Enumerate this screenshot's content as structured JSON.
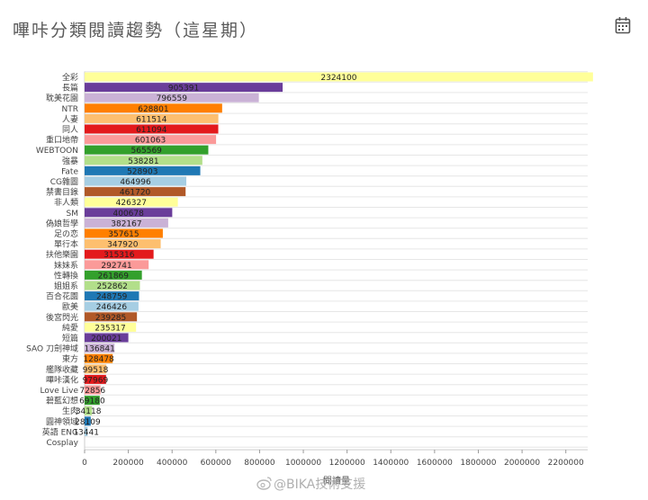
{
  "page": {
    "title": "嗶咔分類閱讀趨勢（這星期）",
    "calendar_icon": "calendar-icon",
    "watermark": "@BIKA技術支援",
    "watermark_icon": "weibo-icon"
  },
  "chart_data": {
    "type": "bar",
    "orientation": "horizontal",
    "title": "",
    "xlabel": "閱讀量",
    "ylabel": "",
    "xlim": [
      0,
      2300000
    ],
    "xticks": [
      0,
      200000,
      400000,
      600000,
      800000,
      1000000,
      1200000,
      1400000,
      1600000,
      1800000,
      2000000,
      2200000
    ],
    "grid": true,
    "categories": [
      "全彩",
      "長篇",
      "耽美花園",
      "NTR",
      "人妻",
      "同人",
      "重口地帶",
      "WEBTOON",
      "強暴",
      "Fate",
      "CG雜圖",
      "禁書目錄",
      "非人類",
      "SM",
      "偽娘哲學",
      "足の恋",
      "單行本",
      "扶他樂園",
      "妹妹系",
      "性轉換",
      "姐姐系",
      "百合花園",
      "歐美",
      "後宮閃光",
      "純愛",
      "短篇",
      "SAO 刀劍神域",
      "東方",
      "艦隊收藏",
      "嗶咔漢化",
      "Love Live",
      "碧藍幻想",
      "生肉",
      "圓神領域",
      "英語 ENG",
      "Cosplay"
    ],
    "values": [
      2324100,
      905391,
      796559,
      628801,
      611514,
      611094,
      601063,
      565569,
      538281,
      528903,
      464996,
      461720,
      426327,
      400678,
      382167,
      357615,
      347920,
      315316,
      292741,
      261869,
      252862,
      248759,
      246426,
      239285,
      235317,
      200021,
      136841,
      128478,
      99518,
      97969,
      72856,
      69180,
      34118,
      28109,
      13441,
      null
    ],
    "value_labels": [
      "2324100",
      "905391",
      "796559",
      "628801",
      "611514",
      "611094",
      "601063",
      "565569",
      "538281",
      "528903",
      "464996",
      "461720",
      "426327",
      "400678",
      "382167",
      "357615",
      "347920",
      "315316",
      "292741",
      "261869",
      "252862",
      "248759",
      "246426",
      "239285",
      "235317",
      "200021",
      "136841",
      "128478",
      "99518",
      "97969",
      "72856",
      "69180",
      "34118",
      "28109",
      "13441",
      ""
    ],
    "colors": [
      "#ffff99",
      "#6a3d9a",
      "#cab2d6",
      "#ff7f00",
      "#fdbf6f",
      "#e31a1c",
      "#fb9a99",
      "#33a02c",
      "#b2df8a",
      "#1f78b4",
      "#a6cee3",
      "#b15928",
      "#ffff99",
      "#6a3d9a",
      "#cab2d6",
      "#ff7f00",
      "#fdbf6f",
      "#e31a1c",
      "#fb9a99",
      "#33a02c",
      "#b2df8a",
      "#1f78b4",
      "#a6cee3",
      "#b15928",
      "#ffff99",
      "#6a3d9a",
      "#cab2d6",
      "#ff7f00",
      "#fdbf6f",
      "#e31a1c",
      "#fb9a99",
      "#33a02c",
      "#b2df8a",
      "#1f78b4",
      "#a6cee3",
      "#b15928"
    ]
  }
}
